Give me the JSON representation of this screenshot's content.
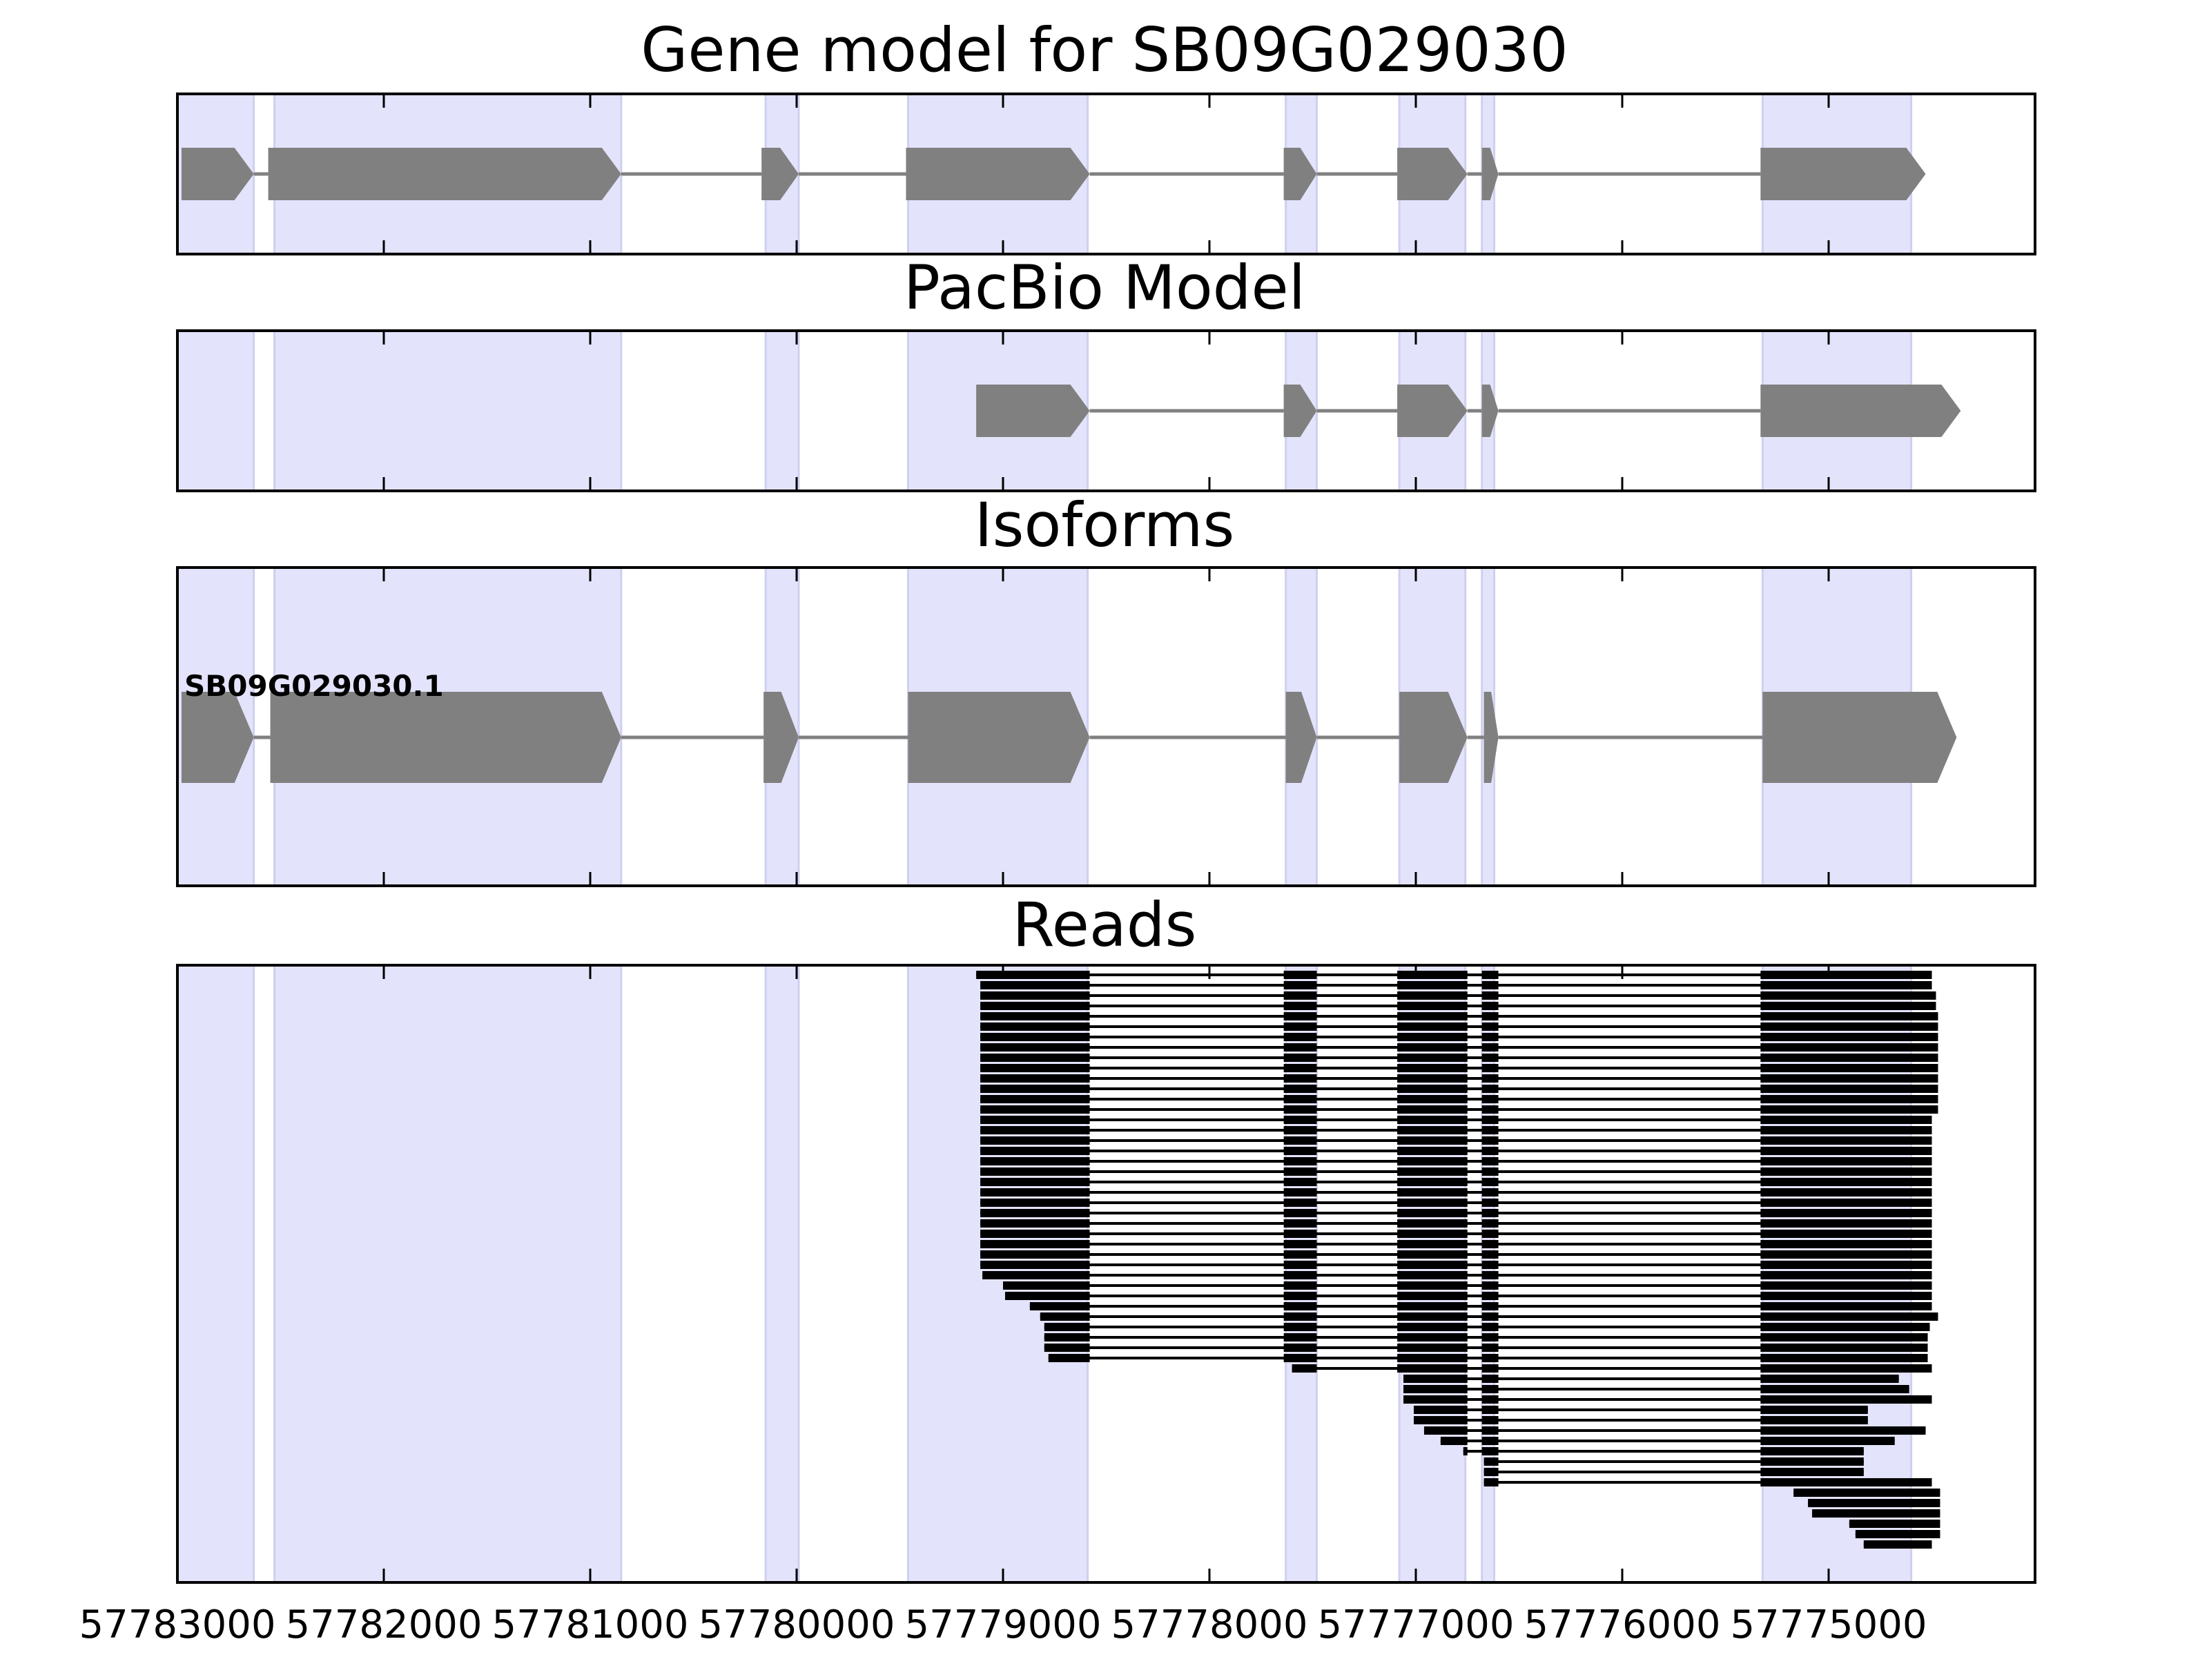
{
  "chart_data": {
    "type": "gene_track",
    "xlim": [
      57783000,
      57774000
    ],
    "x_reversed": true,
    "x_ticks": [
      57783000,
      57782000,
      57781000,
      57780000,
      57779000,
      57778000,
      57777000,
      57776000,
      57775000
    ],
    "x_tick_labels": [
      "57783000",
      "57782000",
      "57781000",
      "57780000",
      "57779000",
      "57778000",
      "57777000",
      "57776000",
      "57775000"
    ],
    "highlight_color": "#e3e3fb",
    "feature_color": "#808080",
    "read_color": "#000000",
    "highlight_regions": [
      [
        57783000,
        57782630
      ],
      [
        57782530,
        57780850
      ],
      [
        57780150,
        57779990
      ],
      [
        57779460,
        57778590
      ],
      [
        57777630,
        57777480
      ],
      [
        57777080,
        57776760
      ],
      [
        57776680,
        57776620
      ],
      [
        57775320,
        57774600
      ]
    ],
    "panels": [
      {
        "title": "Gene model for SB09G029030",
        "exons": [
          [
            57782980,
            57782630
          ],
          [
            57782560,
            57780850
          ],
          [
            57780170,
            57779990
          ],
          [
            57779470,
            57778580
          ],
          [
            57777640,
            57777480
          ],
          [
            57777090,
            57776750
          ],
          [
            57776680,
            57776600
          ],
          [
            57775330,
            57774530
          ]
        ]
      },
      {
        "title": "PacBio Model",
        "exons": [
          [
            57779130,
            57778580
          ],
          [
            57777640,
            57777480
          ],
          [
            57777090,
            57776750
          ],
          [
            57776680,
            57776600
          ],
          [
            57775330,
            57774360
          ]
        ]
      },
      {
        "title": "Isoforms",
        "isoform_label": "SB09G029030.1",
        "exons": [
          [
            57782980,
            57782630
          ],
          [
            57782550,
            57780850
          ],
          [
            57780160,
            57779990
          ],
          [
            57779460,
            57778580
          ],
          [
            57777630,
            57777480
          ],
          [
            57777080,
            57776750
          ],
          [
            57776670,
            57776600
          ],
          [
            57775320,
            57774380
          ]
        ]
      },
      {
        "title": "Reads",
        "reads": [
          [
            57779130,
            57774500
          ],
          [
            57779110,
            57774500
          ],
          [
            57779110,
            57774480
          ],
          [
            57779110,
            57774480
          ],
          [
            57779110,
            57774470
          ],
          [
            57779110,
            57774470
          ],
          [
            57779110,
            57774470
          ],
          [
            57779110,
            57774470
          ],
          [
            57779110,
            57774470
          ],
          [
            57779110,
            57774470
          ],
          [
            57779110,
            57774470
          ],
          [
            57779110,
            57774470
          ],
          [
            57779110,
            57774470
          ],
          [
            57779110,
            57774470
          ],
          [
            57779110,
            57774500
          ],
          [
            57779110,
            57774500
          ],
          [
            57779110,
            57774500
          ],
          [
            57779110,
            57774500
          ],
          [
            57779110,
            57774500
          ],
          [
            57779110,
            57774500
          ],
          [
            57779110,
            57774500
          ],
          [
            57779110,
            57774500
          ],
          [
            57779110,
            57774500
          ],
          [
            57779110,
            57774500
          ],
          [
            57779110,
            57774500
          ],
          [
            57779110,
            57774500
          ],
          [
            57779110,
            57774500
          ],
          [
            57779110,
            57774500
          ],
          [
            57779110,
            57774500
          ],
          [
            57779100,
            57774500
          ],
          [
            57779000,
            57774500
          ],
          [
            57778990,
            57774500
          ],
          [
            57778870,
            57774500
          ],
          [
            57778820,
            57774470
          ],
          [
            57778800,
            57774510
          ],
          [
            57778800,
            57774520
          ],
          [
            57778800,
            57774520
          ],
          [
            57778780,
            57774520
          ],
          [
            57777600,
            57774500
          ],
          [
            57777060,
            57774660
          ],
          [
            57777060,
            57774610
          ],
          [
            57777060,
            57774500
          ],
          [
            57777010,
            57774810
          ],
          [
            57777010,
            57774810
          ],
          [
            57776960,
            57774530
          ],
          [
            57776880,
            57774680
          ],
          [
            57776770,
            57774830
          ],
          [
            57776670,
            57774830
          ],
          [
            57776670,
            57774830
          ],
          [
            57776670,
            57774500
          ],
          [
            57775170,
            57774460
          ],
          [
            57775100,
            57774460
          ],
          [
            57775080,
            57774460
          ],
          [
            57774900,
            57774460
          ],
          [
            57774870,
            57774460
          ],
          [
            57774830,
            57774500
          ]
        ]
      }
    ]
  }
}
